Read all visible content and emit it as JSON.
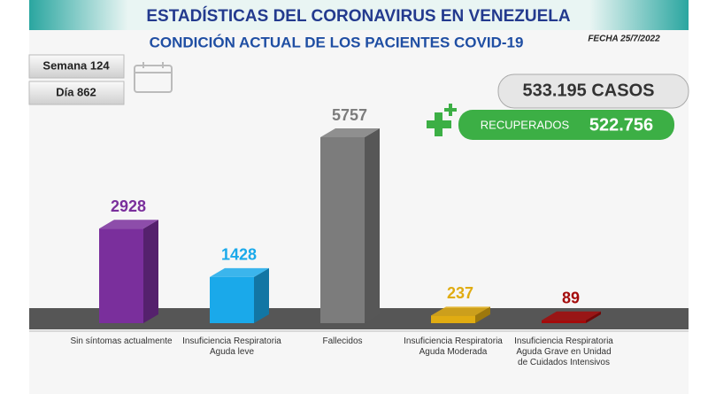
{
  "chart_data": {
    "type": "bar",
    "title": "ESTADÍSTICAS DEL CORONAVIRUS EN VENEZUELA",
    "subtitle": "CONDICIÓN ACTUAL DE LOS PACIENTES COVID-19",
    "date": "FECHA 25/7/2022",
    "week": "Semana 124",
    "day": "Día 862",
    "cases": "533.195 CASOS",
    "recovered_label": "RECUPERADOS",
    "recovered_value": "522.756",
    "categories": [
      "Sin síntomas actualmente",
      "Insuficiencia Respiratoria Aguda leve",
      "Fallecidos",
      "Insuficiencia Respiratoria Aguda Moderada",
      "Insuficiencia Respiratoria Aguda Grave en Unidad de Cuidados Intensivos"
    ],
    "values": [
      2928,
      1428,
      5757,
      237,
      89
    ],
    "colors": [
      "#7a2f9c",
      "#1aa9ea",
      "#7c7c7c",
      "#e0ac12",
      "#a40b0b"
    ]
  }
}
